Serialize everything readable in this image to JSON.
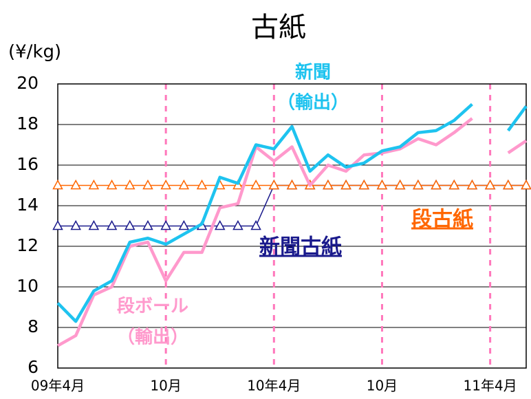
{
  "chart_data": {
    "type": "line",
    "title": "古紙",
    "y_label": "(¥/kg)",
    "categories": [
      "09年4月",
      null,
      null,
      null,
      null,
      null,
      "10月",
      null,
      null,
      null,
      null,
      null,
      "10年4月",
      null,
      null,
      null,
      null,
      null,
      "10月",
      null,
      null,
      null,
      null,
      null,
      "11年4月",
      null,
      null
    ],
    "ylim": [
      6,
      20
    ],
    "yticks": [
      6,
      8,
      10,
      12,
      14,
      16,
      18,
      20
    ],
    "grid": true,
    "series": [
      {
        "name": [
          "新聞",
          "（輸出）"
        ],
        "color": "#1ec3ef",
        "style": "line",
        "values": [
          9.2,
          8.3,
          9.8,
          10.3,
          12.2,
          12.4,
          12.1,
          12.6,
          13.1,
          15.4,
          15.1,
          17.0,
          16.8,
          17.9,
          15.7,
          16.5,
          15.9,
          16.1,
          16.7,
          16.9,
          17.6,
          17.7,
          18.2,
          19.0,
          null,
          17.7,
          18.9
        ]
      },
      {
        "name": [
          "段ボール",
          "（輸出）"
        ],
        "color": "#ff99cc",
        "style": "line",
        "values": [
          7.1,
          7.6,
          9.6,
          10.0,
          12.0,
          12.2,
          10.3,
          11.7,
          11.7,
          13.9,
          14.1,
          16.9,
          16.2,
          16.9,
          15.0,
          16.0,
          15.7,
          16.5,
          16.6,
          16.8,
          17.3,
          17.0,
          17.6,
          18.3,
          null,
          16.6,
          17.2
        ]
      },
      {
        "name": [
          "新聞古紙"
        ],
        "color": "#1a1a8c",
        "style": "triangle",
        "values": [
          13,
          13,
          13,
          13,
          13,
          13,
          13,
          13,
          13,
          13,
          13,
          13,
          15,
          15,
          15,
          15,
          15,
          15,
          15,
          15,
          15,
          15,
          15,
          15,
          15,
          15,
          15
        ]
      },
      {
        "name": [
          "段古紙"
        ],
        "color": "#ff6600",
        "style": "triangle",
        "values": [
          15,
          15,
          15,
          15,
          15,
          15,
          15,
          15,
          15,
          15,
          15,
          15,
          15,
          15,
          15,
          15,
          15,
          15,
          15,
          15,
          15,
          15,
          15,
          15,
          15,
          15,
          15
        ]
      }
    ]
  }
}
